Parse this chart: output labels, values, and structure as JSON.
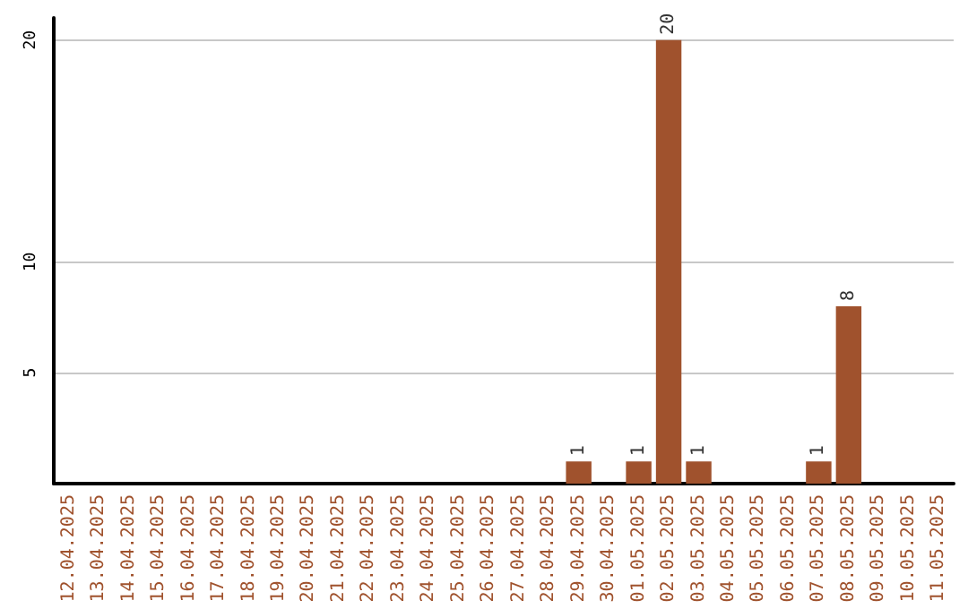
{
  "chart_data": {
    "type": "bar",
    "categories": [
      "12.04.2025",
      "13.04.2025",
      "14.04.2025",
      "15.04.2025",
      "16.04.2025",
      "17.04.2025",
      "18.04.2025",
      "19.04.2025",
      "20.04.2025",
      "21.04.2025",
      "22.04.2025",
      "23.04.2025",
      "24.04.2025",
      "25.04.2025",
      "26.04.2025",
      "27.04.2025",
      "28.04.2025",
      "29.04.2025",
      "30.04.2025",
      "01.05.2025",
      "02.05.2025",
      "03.05.2025",
      "04.05.2025",
      "05.05.2025",
      "06.05.2025",
      "07.05.2025",
      "08.05.2025",
      "09.05.2025",
      "10.05.2025",
      "11.05.2025"
    ],
    "values": [
      0,
      0,
      0,
      0,
      0,
      0,
      0,
      0,
      0,
      0,
      0,
      0,
      0,
      0,
      0,
      0,
      0,
      1,
      0,
      1,
      20,
      1,
      0,
      0,
      0,
      1,
      8,
      0,
      0,
      0
    ],
    "color": "#a0522d",
    "value_labels": [
      null,
      null,
      null,
      null,
      null,
      null,
      null,
      null,
      null,
      null,
      null,
      null,
      null,
      null,
      null,
      null,
      null,
      "1",
      null,
      "1",
      "20",
      "1",
      null,
      null,
      null,
      "1",
      "8",
      null,
      null,
      null
    ],
    "ylim": [
      0,
      21
    ],
    "yticks": [
      5,
      10,
      20
    ],
    "grid": "y"
  }
}
